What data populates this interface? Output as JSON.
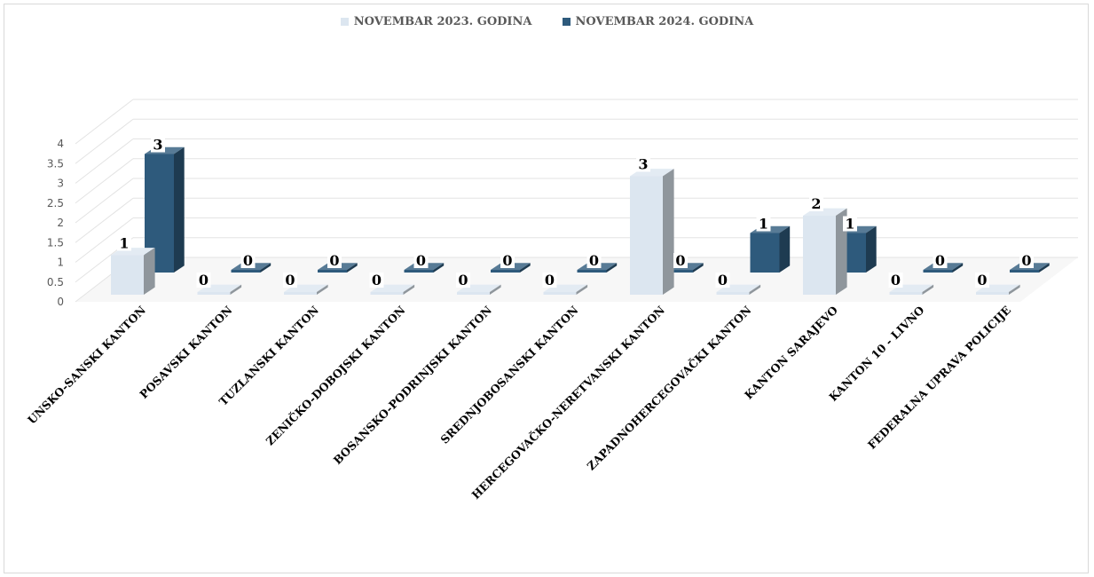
{
  "chart_data": {
    "type": "bar",
    "categories": [
      "UNSKO-SANSKI KANTON",
      "POSAVSKI KANTON",
      "TUZLANSKI KANTON",
      "ZENIČKO-DOBOJSKI KANTON",
      "BOSANSKO-PODRINJSKI KANTON",
      "SREDNJOBOSANSKI KANTON",
      "HERCEGOVAČKO-NERETVANSKI KANTON",
      "ZAPADNOHERCEGOVAČKI KANTON",
      "KANTON SARAJEVO",
      "KANTON 10 - LIVNO",
      "FEDERALNA UPRAVA POLICIJE"
    ],
    "series": [
      {
        "name": "NOVEMBAR 2023. GODINA",
        "values": [
          1,
          0,
          0,
          0,
          0,
          0,
          3,
          0,
          2,
          0,
          0
        ],
        "color": "#dce6f0"
      },
      {
        "name": "NOVEMBAR 2024. GODINA",
        "values": [
          3,
          0,
          0,
          0,
          0,
          0,
          0,
          1,
          1,
          0,
          0
        ],
        "color": "#2e5a7c"
      }
    ],
    "y_ticks": [
      "0",
      "0.5",
      "1",
      "1.5",
      "2",
      "2.5",
      "3",
      "3.5",
      "4"
    ],
    "ylim": [
      0,
      4
    ],
    "grid": true,
    "legend_position": "top",
    "style": "3d-column"
  }
}
